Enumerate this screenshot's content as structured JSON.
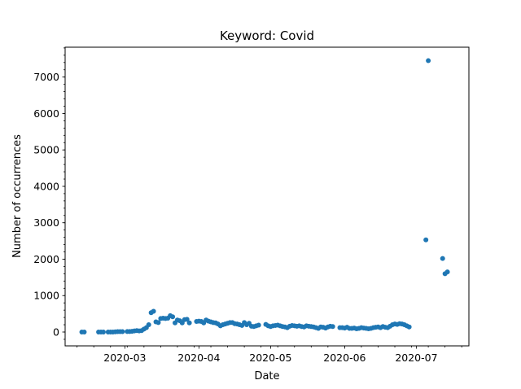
{
  "chart_data": {
    "type": "scatter",
    "title": "Keyword: Covid",
    "xlabel": "Date",
    "ylabel": "Number of occurrences",
    "x_tick_labels": [
      "2020-03",
      "2020-04",
      "2020-05",
      "2020-06",
      "2020-07"
    ],
    "y_tick_labels": [
      "0",
      "1000",
      "2000",
      "3000",
      "4000",
      "5000",
      "6000",
      "7000"
    ],
    "xlim": [
      "2020-02-05",
      "2020-07-23"
    ],
    "ylim": [
      -380,
      7820
    ],
    "grid": false,
    "marker_color": "#1f77b4",
    "points": [
      [
        "2020-02-12",
        0
      ],
      [
        "2020-02-13",
        0
      ],
      [
        "2020-02-19",
        0
      ],
      [
        "2020-02-20",
        0
      ],
      [
        "2020-02-21",
        0
      ],
      [
        "2020-02-23",
        0
      ],
      [
        "2020-02-24",
        0
      ],
      [
        "2020-02-25",
        0
      ],
      [
        "2020-02-26",
        5
      ],
      [
        "2020-02-27",
        10
      ],
      [
        "2020-02-28",
        10
      ],
      [
        "2020-02-29",
        10
      ],
      [
        "2020-03-02",
        15
      ],
      [
        "2020-03-03",
        15
      ],
      [
        "2020-03-04",
        20
      ],
      [
        "2020-03-05",
        30
      ],
      [
        "2020-03-06",
        40
      ],
      [
        "2020-03-07",
        30
      ],
      [
        "2020-03-08",
        40
      ],
      [
        "2020-03-09",
        80
      ],
      [
        "2020-03-10",
        120
      ],
      [
        "2020-03-11",
        200
      ],
      [
        "2020-03-12",
        530
      ],
      [
        "2020-03-13",
        570
      ],
      [
        "2020-03-14",
        280
      ],
      [
        "2020-03-15",
        260
      ],
      [
        "2020-03-16",
        370
      ],
      [
        "2020-03-17",
        380
      ],
      [
        "2020-03-18",
        370
      ],
      [
        "2020-03-19",
        380
      ],
      [
        "2020-03-20",
        450
      ],
      [
        "2020-03-21",
        420
      ],
      [
        "2020-03-22",
        250
      ],
      [
        "2020-03-23",
        330
      ],
      [
        "2020-03-24",
        310
      ],
      [
        "2020-03-25",
        250
      ],
      [
        "2020-03-26",
        340
      ],
      [
        "2020-03-27",
        350
      ],
      [
        "2020-03-28",
        250
      ],
      [
        "2020-03-31",
        290
      ],
      [
        "2020-04-01",
        300
      ],
      [
        "2020-04-02",
        290
      ],
      [
        "2020-04-03",
        250
      ],
      [
        "2020-04-04",
        330
      ],
      [
        "2020-04-05",
        300
      ],
      [
        "2020-04-06",
        280
      ],
      [
        "2020-04-07",
        260
      ],
      [
        "2020-04-08",
        250
      ],
      [
        "2020-04-09",
        220
      ],
      [
        "2020-04-10",
        170
      ],
      [
        "2020-04-11",
        200
      ],
      [
        "2020-04-12",
        220
      ],
      [
        "2020-04-13",
        240
      ],
      [
        "2020-04-14",
        260
      ],
      [
        "2020-04-15",
        260
      ],
      [
        "2020-04-16",
        230
      ],
      [
        "2020-04-17",
        220
      ],
      [
        "2020-04-18",
        200
      ],
      [
        "2020-04-19",
        180
      ],
      [
        "2020-04-20",
        260
      ],
      [
        "2020-04-21",
        200
      ],
      [
        "2020-04-22",
        240
      ],
      [
        "2020-04-23",
        160
      ],
      [
        "2020-04-24",
        150
      ],
      [
        "2020-04-25",
        170
      ],
      [
        "2020-04-26",
        190
      ],
      [
        "2020-04-29",
        210
      ],
      [
        "2020-04-30",
        170
      ],
      [
        "2020-05-01",
        150
      ],
      [
        "2020-05-02",
        170
      ],
      [
        "2020-05-03",
        180
      ],
      [
        "2020-05-04",
        190
      ],
      [
        "2020-05-05",
        170
      ],
      [
        "2020-05-06",
        150
      ],
      [
        "2020-05-07",
        140
      ],
      [
        "2020-05-08",
        120
      ],
      [
        "2020-05-09",
        160
      ],
      [
        "2020-05-10",
        180
      ],
      [
        "2020-05-11",
        170
      ],
      [
        "2020-05-12",
        160
      ],
      [
        "2020-05-13",
        170
      ],
      [
        "2020-05-14",
        150
      ],
      [
        "2020-05-15",
        140
      ],
      [
        "2020-05-16",
        170
      ],
      [
        "2020-05-17",
        160
      ],
      [
        "2020-05-18",
        150
      ],
      [
        "2020-05-19",
        140
      ],
      [
        "2020-05-20",
        120
      ],
      [
        "2020-05-21",
        100
      ],
      [
        "2020-05-22",
        140
      ],
      [
        "2020-05-23",
        130
      ],
      [
        "2020-05-24",
        110
      ],
      [
        "2020-05-25",
        140
      ],
      [
        "2020-05-26",
        160
      ],
      [
        "2020-05-27",
        150
      ],
      [
        "2020-05-30",
        120
      ],
      [
        "2020-05-31",
        120
      ],
      [
        "2020-06-01",
        110
      ],
      [
        "2020-06-02",
        130
      ],
      [
        "2020-06-03",
        100
      ],
      [
        "2020-06-04",
        100
      ],
      [
        "2020-06-05",
        110
      ],
      [
        "2020-06-06",
        90
      ],
      [
        "2020-06-07",
        100
      ],
      [
        "2020-06-08",
        120
      ],
      [
        "2020-06-09",
        110
      ],
      [
        "2020-06-10",
        100
      ],
      [
        "2020-06-11",
        90
      ],
      [
        "2020-06-12",
        100
      ],
      [
        "2020-06-13",
        120
      ],
      [
        "2020-06-14",
        130
      ],
      [
        "2020-06-15",
        140
      ],
      [
        "2020-06-16",
        120
      ],
      [
        "2020-06-17",
        150
      ],
      [
        "2020-06-18",
        130
      ],
      [
        "2020-06-19",
        120
      ],
      [
        "2020-06-20",
        160
      ],
      [
        "2020-06-21",
        200
      ],
      [
        "2020-06-22",
        220
      ],
      [
        "2020-06-23",
        210
      ],
      [
        "2020-06-24",
        230
      ],
      [
        "2020-06-25",
        220
      ],
      [
        "2020-06-26",
        200
      ],
      [
        "2020-06-27",
        170
      ],
      [
        "2020-06-28",
        140
      ],
      [
        "2020-07-05",
        2530
      ],
      [
        "2020-07-06",
        7450
      ],
      [
        "2020-07-12",
        2020
      ],
      [
        "2020-07-13",
        1600
      ],
      [
        "2020-07-14",
        1650
      ]
    ]
  }
}
